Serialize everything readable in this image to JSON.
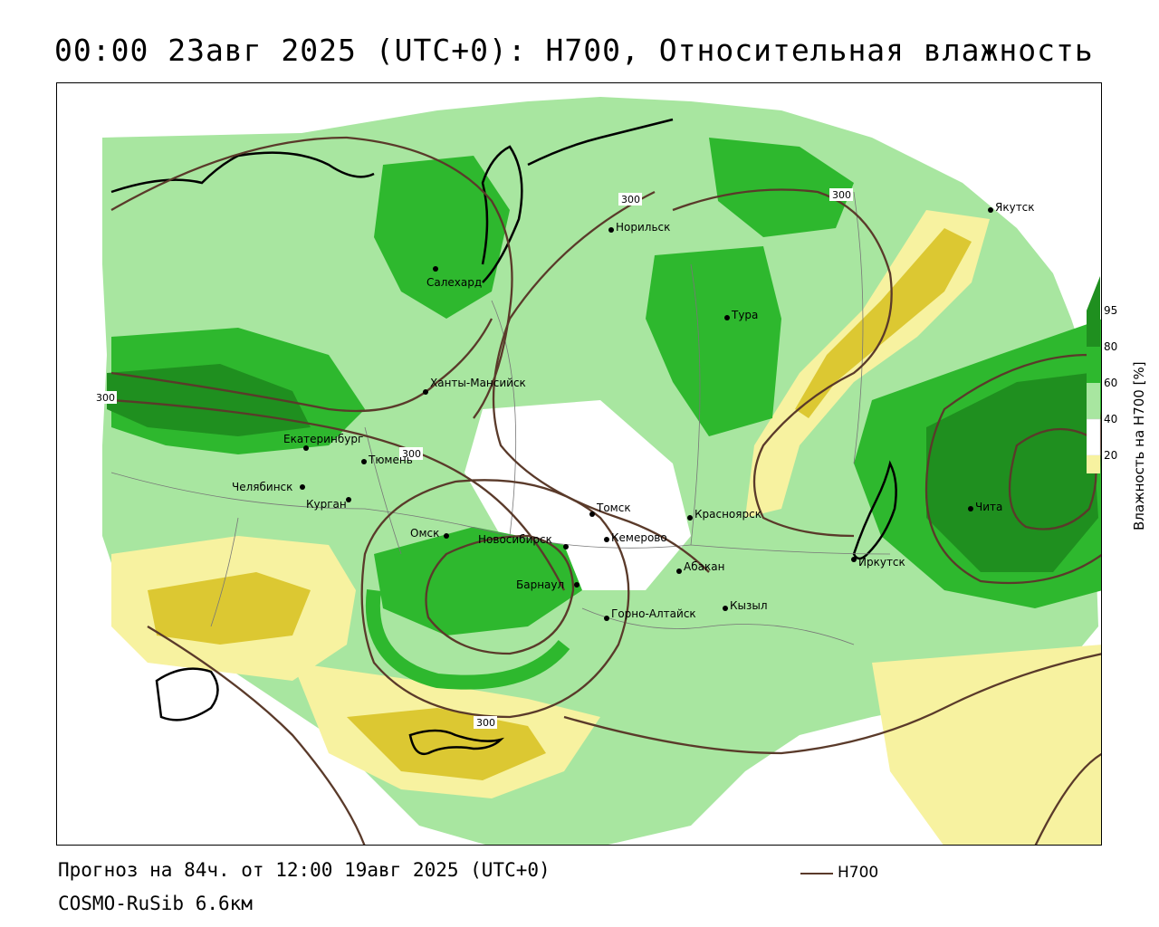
{
  "title": "00:00 23авг 2025 (UTC+0): H700, Относительная влажность",
  "forecast_text": "Прогноз на 84ч. от 12:00 19авг 2025 (UTC+0)",
  "model_text": "COSMO-RuSib 6.6км",
  "legend": {
    "line_label": "H700",
    "line_color": "#5a3a2a"
  },
  "colorbar": {
    "title": "Влажность на H700 [%]",
    "ticks": [
      "95",
      "80",
      "60",
      "40",
      "20"
    ],
    "colors": {
      "c95": "#1f8f1f",
      "c80": "#2eb82e",
      "c60": "#a8e6a0",
      "c40": "#ffffff",
      "c20": "#f7f2a0",
      "c0": "#dcc832"
    }
  },
  "isoline_labels": [
    "300",
    "300",
    "300",
    "300",
    "300"
  ],
  "cities": [
    {
      "name": "Норильск"
    },
    {
      "name": "Якутск"
    },
    {
      "name": "Салехард"
    },
    {
      "name": "Тура"
    },
    {
      "name": "Ханты-Мансийск"
    },
    {
      "name": "Екатеринбург"
    },
    {
      "name": "Тюмень"
    },
    {
      "name": "Челябинск"
    },
    {
      "name": "Курган"
    },
    {
      "name": "Омск"
    },
    {
      "name": "Новосибирск"
    },
    {
      "name": "Томск"
    },
    {
      "name": "Кемерово"
    },
    {
      "name": "Красноярск"
    },
    {
      "name": "Барнаул"
    },
    {
      "name": "Абакан"
    },
    {
      "name": "Иркутск"
    },
    {
      "name": "Чита"
    },
    {
      "name": "Горно-Алтайск"
    },
    {
      "name": "Кызыл"
    }
  ]
}
